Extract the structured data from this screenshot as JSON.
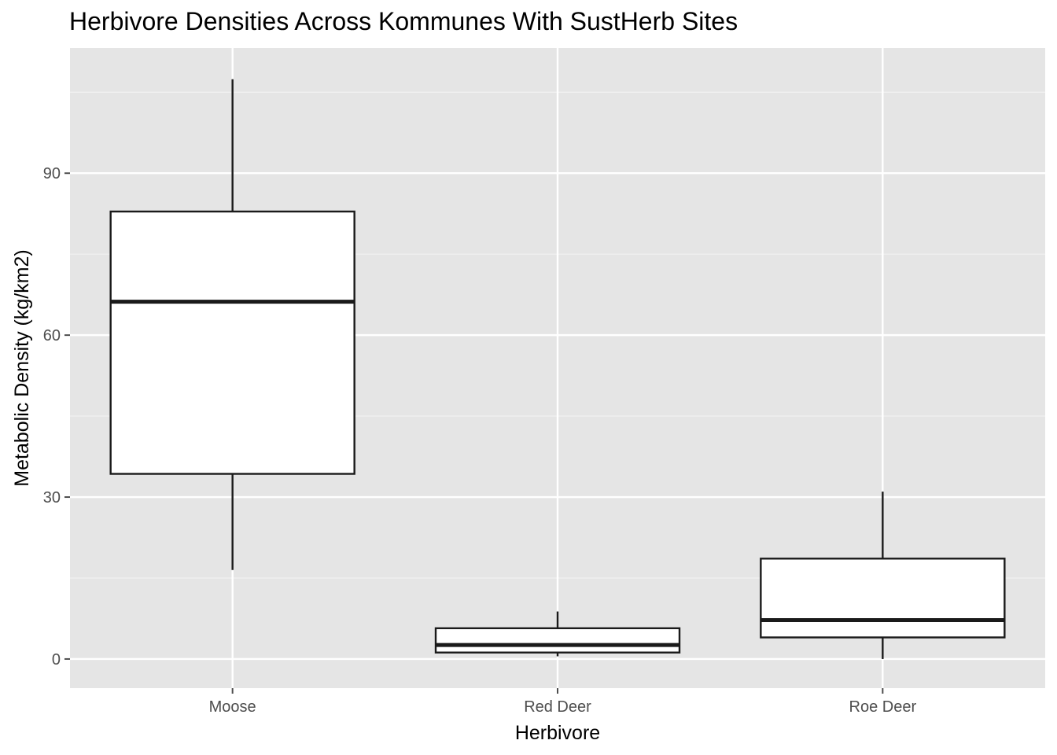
{
  "chart_data": {
    "type": "boxplot",
    "title": "Herbivore Densities Across Kommunes With SustHerb Sites",
    "xlabel": "Herbivore",
    "ylabel": "Metabolic Density (kg/km2)",
    "categories": [
      "Moose",
      "Red Deer",
      "Roe Deer"
    ],
    "boxes": [
      {
        "category": "Moose",
        "whisker_low": 16.5,
        "q1": 34.3,
        "median": 66.2,
        "q3": 82.9,
        "whisker_high": 107.4
      },
      {
        "category": "Red Deer",
        "whisker_low": 0.5,
        "q1": 1.2,
        "median": 2.6,
        "q3": 5.7,
        "whisker_high": 8.8
      },
      {
        "category": "Roe Deer",
        "whisker_low": 0.0,
        "q1": 4.0,
        "median": 7.2,
        "q3": 18.6,
        "whisker_high": 31.0
      }
    ],
    "yticks": [
      0,
      30,
      60,
      90
    ],
    "ylim": [
      -5.4,
      113.2
    ],
    "grid": true,
    "colors": {
      "panel_bg": "#e5e5e5",
      "grid_major": "#ffffff",
      "grid_minor": "#f2f2f2",
      "box_fill": "#ffffff",
      "box_line": "#1a1a1a",
      "tick_color": "#4d4d4d"
    }
  }
}
